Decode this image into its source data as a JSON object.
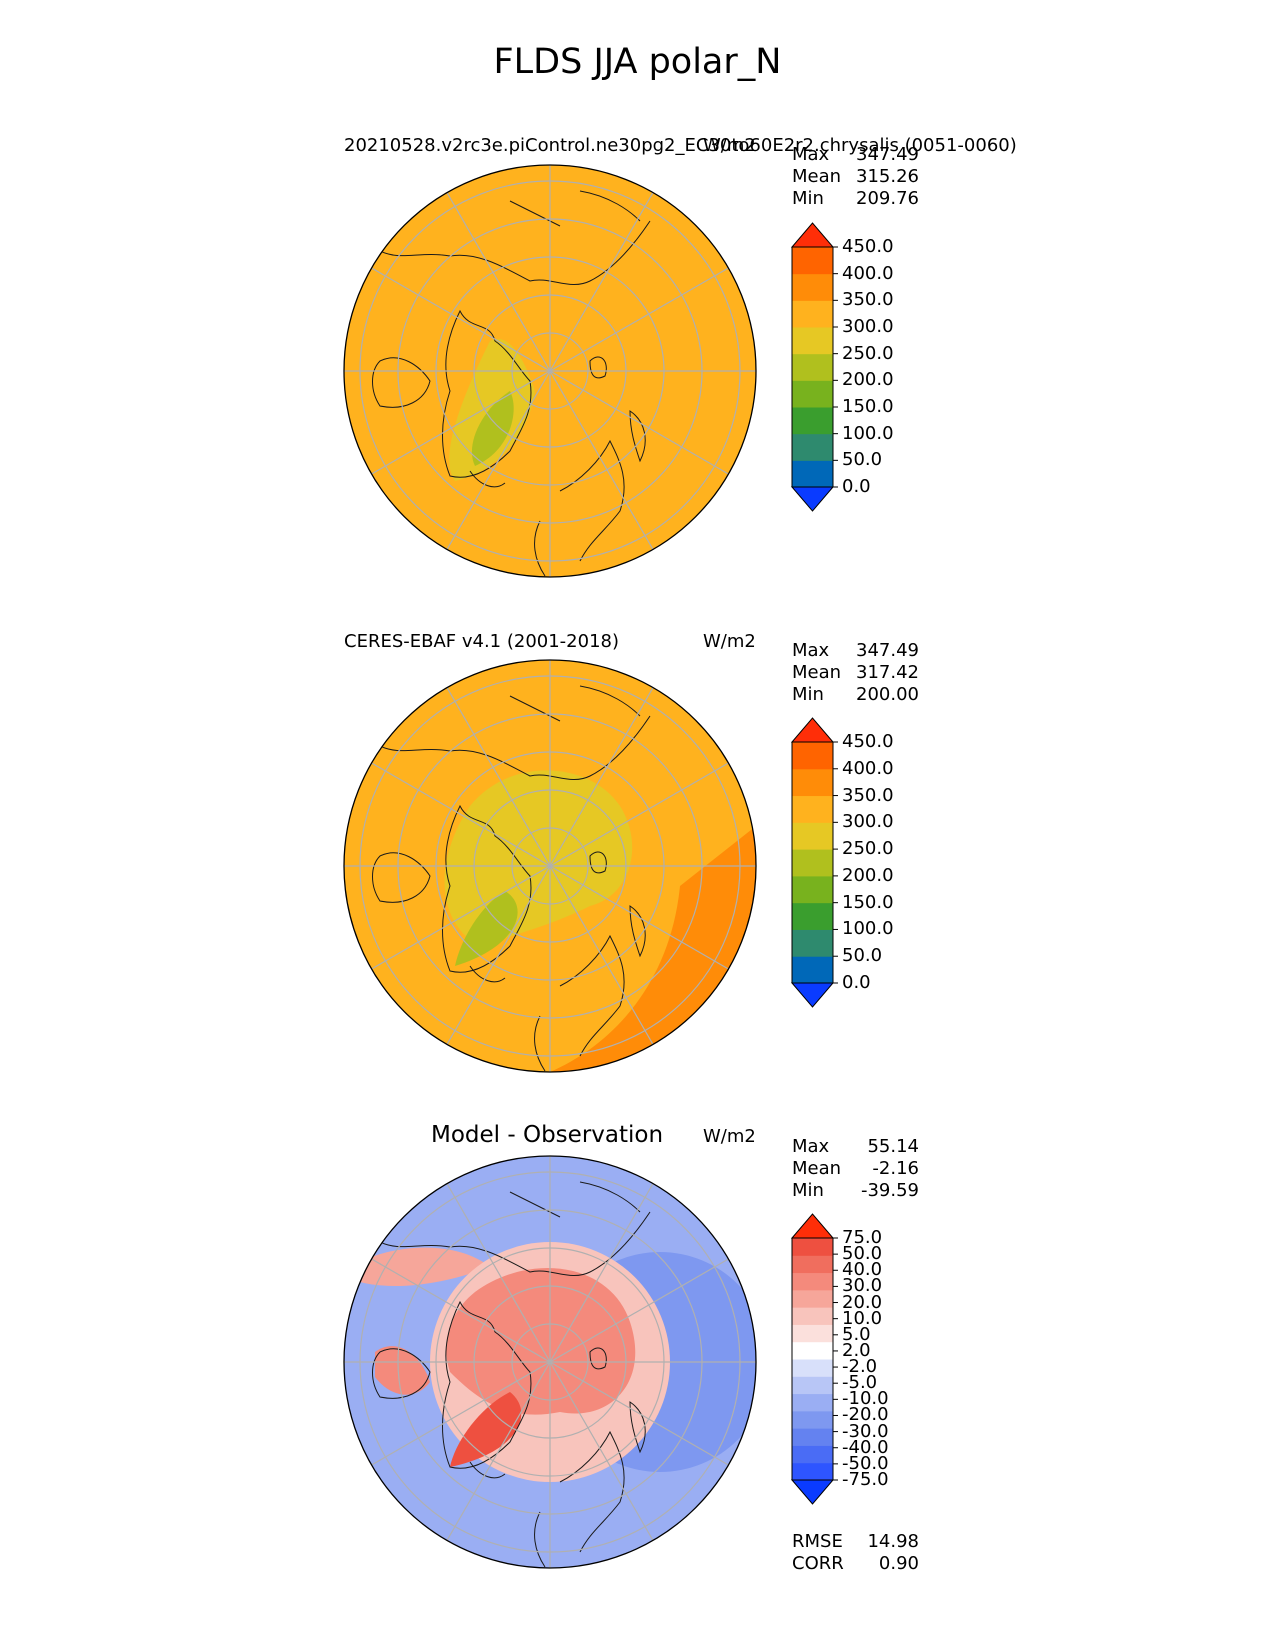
{
  "figure": {
    "title": "FLDS JJA polar_N"
  },
  "panels": [
    {
      "title": "20210528.v2rc3e.piControl.ne30pg2_EC30to60E2r2.chrysalis (0051-0060)",
      "units": "W/m2",
      "stats": [
        {
          "label": "Max",
          "value": "347.49"
        },
        {
          "label": "Mean",
          "value": "315.26"
        },
        {
          "label": "Min",
          "value": "209.76"
        }
      ],
      "colorbar": {
        "ticks": [
          "450.0",
          "400.0",
          "350.0",
          "300.0",
          "250.0",
          "200.0",
          "150.0",
          "100.0",
          "50.0",
          "0.0"
        ],
        "colors": [
          "#0a3bff",
          "#0068b8",
          "#2e8a6e",
          "#3a9e2e",
          "#78b21e",
          "#b0c01e",
          "#e6c824",
          "#ffb21e",
          "#ff8c08",
          "#ff6400",
          "#ff2e08"
        ]
      }
    },
    {
      "title": "CERES-EBAF v4.1 (2001-2018)",
      "units": "W/m2",
      "stats": [
        {
          "label": "Max",
          "value": "347.49"
        },
        {
          "label": "Mean",
          "value": "317.42"
        },
        {
          "label": "Min",
          "value": "200.00"
        }
      ],
      "colorbar": {
        "ticks": [
          "450.0",
          "400.0",
          "350.0",
          "300.0",
          "250.0",
          "200.0",
          "150.0",
          "100.0",
          "50.0",
          "0.0"
        ],
        "colors": [
          "#0a3bff",
          "#0068b8",
          "#2e8a6e",
          "#3a9e2e",
          "#78b21e",
          "#b0c01e",
          "#e6c824",
          "#ffb21e",
          "#ff8c08",
          "#ff6400",
          "#ff2e08"
        ]
      }
    },
    {
      "title": "Model - Observation",
      "units": "W/m2",
      "stats": [
        {
          "label": "Max",
          "value": "55.14"
        },
        {
          "label": "Mean",
          "value": "-2.16"
        },
        {
          "label": "Min",
          "value": "-39.59"
        }
      ],
      "colorbar": {
        "ticks": [
          "75.0",
          "50.0",
          "40.0",
          "30.0",
          "20.0",
          "10.0",
          "5.0",
          "2.0",
          "-2.0",
          "-5.0",
          "-10.0",
          "-20.0",
          "-30.0",
          "-40.0",
          "-50.0",
          "-75.0"
        ],
        "colors": [
          "#0a3bff",
          "#2e55ff",
          "#4a6cf5",
          "#6482f0",
          "#7e98f0",
          "#9aaef3",
          "#b8c6f6",
          "#d8e0fa",
          "#ffffff",
          "#fbe0dc",
          "#f8c4bc",
          "#f6a69a",
          "#f48a7c",
          "#f06e5e",
          "#ee5040",
          "#ff2e08"
        ]
      },
      "metrics": [
        {
          "label": "RMSE",
          "value": "14.98"
        },
        {
          "label": "CORR",
          "value": "0.90"
        }
      ]
    }
  ],
  "chart_data": [
    {
      "type": "heatmap",
      "title": "20210528.v2rc3e.piControl.ne30pg2_EC30to60E2r2.chrysalis (0051-0060)",
      "projection": "north-polar-stereographic",
      "units": "W/m2",
      "stats": {
        "max": 347.49,
        "mean": 315.26,
        "min": 209.76
      },
      "levels": [
        0,
        50,
        100,
        150,
        200,
        250,
        300,
        350,
        400,
        450
      ],
      "dominant_fill_range": [
        300,
        350
      ],
      "low_region": "Greenland 200-250"
    },
    {
      "type": "heatmap",
      "title": "CERES-EBAF v4.1 (2001-2018)",
      "projection": "north-polar-stereographic",
      "units": "W/m2",
      "stats": {
        "max": 347.49,
        "mean": 317.42,
        "min": 200.0
      },
      "levels": [
        0,
        50,
        100,
        150,
        200,
        250,
        300,
        350,
        400,
        450
      ],
      "dominant_fill_range": [
        300,
        350
      ],
      "low_region": "Arctic Ocean 250-300, Greenland 200-250"
    },
    {
      "type": "heatmap",
      "title": "Model - Observation",
      "projection": "north-polar-stereographic",
      "units": "W/m2",
      "stats": {
        "max": 55.14,
        "mean": -2.16,
        "min": -39.59
      },
      "levels": [
        -75,
        -50,
        -40,
        -30,
        -20,
        -10,
        -5,
        -2,
        2,
        5,
        10,
        20,
        30,
        40,
        50,
        75
      ],
      "rmse": 14.98,
      "corr": 0.9
    }
  ]
}
